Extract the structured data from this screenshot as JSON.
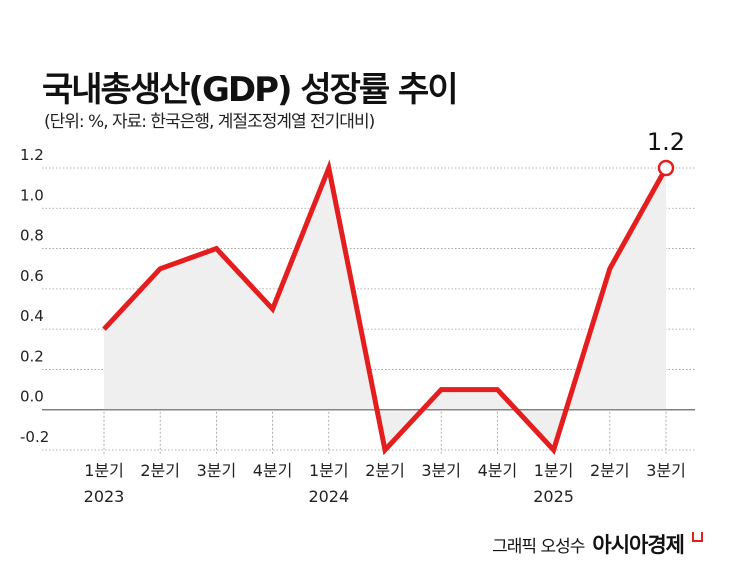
{
  "chart_data": {
    "type": "line",
    "title": "국내총생산(GDP) 성장률 추이",
    "subtitle": "(단위: %, 자료: 한국은행, 계절조정계열 전기대비)",
    "categories": [
      "1분기",
      "2분기",
      "3분기",
      "4분기",
      "1분기",
      "2분기",
      "3분기",
      "4분기",
      "1분기",
      "2분기",
      "3분기"
    ],
    "years": [
      "2023",
      "",
      "",
      "",
      "2024",
      "",
      "",
      "",
      "2025",
      "",
      ""
    ],
    "values": [
      0.4,
      0.7,
      0.8,
      0.5,
      1.2,
      -0.2,
      0.1,
      0.1,
      -0.2,
      0.7,
      1.2
    ],
    "yticks": [
      "1.2",
      "1.0",
      "0.8",
      "0.6",
      "0.4",
      "0.2",
      "0.0",
      "-0.2"
    ],
    "ylim": [
      -0.2,
      1.2
    ],
    "grid": true,
    "annotation": {
      "label": "1.2",
      "index": 10
    },
    "colors": {
      "line": "#e41e1e",
      "area": "#efefef",
      "grid": "#999999"
    }
  },
  "credit": {
    "author": "그래픽 오성수",
    "brand": "아시아경제"
  }
}
